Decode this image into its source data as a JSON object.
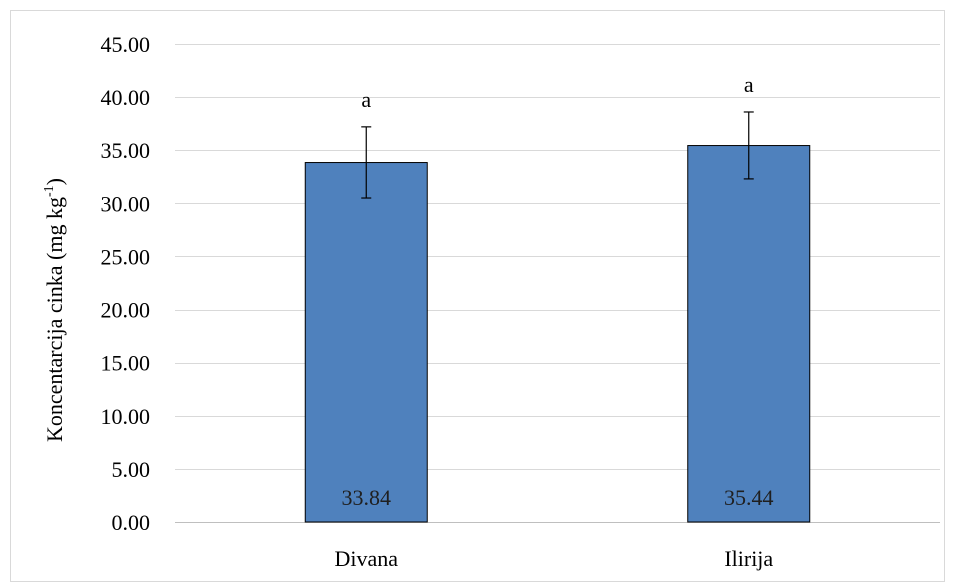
{
  "chart_data": {
    "type": "bar",
    "title": "",
    "xlabel": "",
    "ylabel": "Koncentarcija cinka (mg kg-1)",
    "ylabel_main": "Koncentarcija cinka (mg kg",
    "ylabel_sup": "-1",
    "ylabel_close": ")",
    "categories": [
      "Divana",
      "Ilirija"
    ],
    "values": [
      33.84,
      35.44
    ],
    "value_labels": [
      "33.84",
      "35.44"
    ],
    "error_low": [
      30.5,
      32.3
    ],
    "error_high": [
      37.2,
      38.6
    ],
    "significance_letters": [
      "a",
      "a"
    ],
    "ylim": [
      0,
      45
    ],
    "ytick_values": [
      0,
      5,
      10,
      15,
      20,
      25,
      30,
      35,
      40,
      45
    ],
    "ytick_labels": [
      "0.00",
      "5.00",
      "10.00",
      "15.00",
      "20.00",
      "25.00",
      "30.00",
      "35.00",
      "40.00",
      "45.00"
    ],
    "grid": true,
    "legend": "none",
    "colors": {
      "bar_fill": "#4f81bd",
      "bar_stroke": "#000000",
      "grid": "#d9d9d9",
      "text": "#000000",
      "frame": "#d9d9d9"
    }
  }
}
